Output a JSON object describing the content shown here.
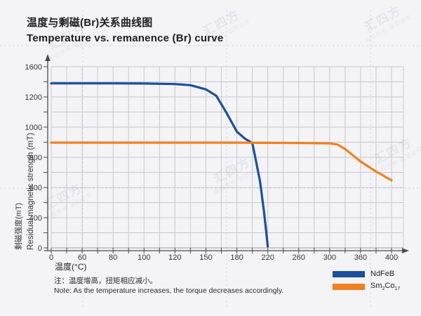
{
  "header": {
    "title_zh": "温度与剩磁(Br)关系曲线图",
    "title_en": "Temperature vs. remanence (Br) curve"
  },
  "note": {
    "zh": "注：温度增高，扭矩相应减小。",
    "en": "Note: As the temperature increases, the torque decreases accordingly."
  },
  "watermark": {
    "main": "汇四方",
    "sub": "版权所有 盗图必究"
  },
  "colors": {
    "background": "#f4f4f6",
    "grid": "#c7c7cb",
    "axis": "#4a4a4a",
    "tick_text": "#333333",
    "ndfeb_blue": "#1a4f9d",
    "sm2co17_orange": "#ef8122",
    "watermark_line": "#b8bfe6"
  },
  "legend": {
    "items": [
      {
        "name": "NdFeB",
        "color": "#1a4f9d",
        "label_parts": [
          {
            "t": "NdFeB",
            "sub": false
          }
        ]
      },
      {
        "name": "Sm2Co17",
        "color": "#ef8122",
        "label_parts": [
          {
            "t": "Sm",
            "sub": false
          },
          {
            "t": "2",
            "sub": true
          },
          {
            "t": "Co",
            "sub": false
          },
          {
            "t": "17",
            "sub": true
          }
        ]
      }
    ]
  },
  "chart_data": {
    "type": "line",
    "title_zh": "温度与剩磁(Br)关系曲线图",
    "title_en": "Temperature vs. remanence (Br) curve",
    "xlabel": "温度(°C)",
    "ylabel_zh": "剩磁强度(mT)",
    "ylabel_en": "Residual magnetic strength (mT)",
    "x_scale": "category-spaced",
    "y_scale": "category-spaced",
    "x_ticks": [
      0,
      60,
      80,
      100,
      120,
      150,
      180,
      220,
      260,
      300,
      360,
      400
    ],
    "y_ticks": [
      1600,
      1200,
      1000,
      800,
      600,
      400,
      0
    ],
    "grid": true,
    "legend_position": "bottom-right",
    "series": [
      {
        "name": "NdFeB",
        "color": "#1a4f9d",
        "points": [
          [
            0,
            1380
          ],
          [
            60,
            1380
          ],
          [
            80,
            1380
          ],
          [
            100,
            1378
          ],
          [
            120,
            1370
          ],
          [
            135,
            1355
          ],
          [
            150,
            1300
          ],
          [
            160,
            1215
          ],
          [
            170,
            1095
          ],
          [
            180,
            970
          ],
          [
            190,
            925
          ],
          [
            200,
            895
          ],
          [
            205,
            770
          ],
          [
            210,
            640
          ],
          [
            215,
            445
          ],
          [
            218,
            215
          ],
          [
            220,
            20
          ]
        ]
      },
      {
        "name": "Sm2Co17",
        "color": "#ef8122",
        "points": [
          [
            0,
            897
          ],
          [
            60,
            897
          ],
          [
            80,
            897
          ],
          [
            100,
            897
          ],
          [
            120,
            897
          ],
          [
            150,
            897
          ],
          [
            180,
            897
          ],
          [
            220,
            896
          ],
          [
            260,
            895
          ],
          [
            300,
            892
          ],
          [
            315,
            885
          ],
          [
            330,
            855
          ],
          [
            360,
            772
          ],
          [
            380,
            705
          ],
          [
            400,
            648
          ]
        ]
      }
    ]
  }
}
